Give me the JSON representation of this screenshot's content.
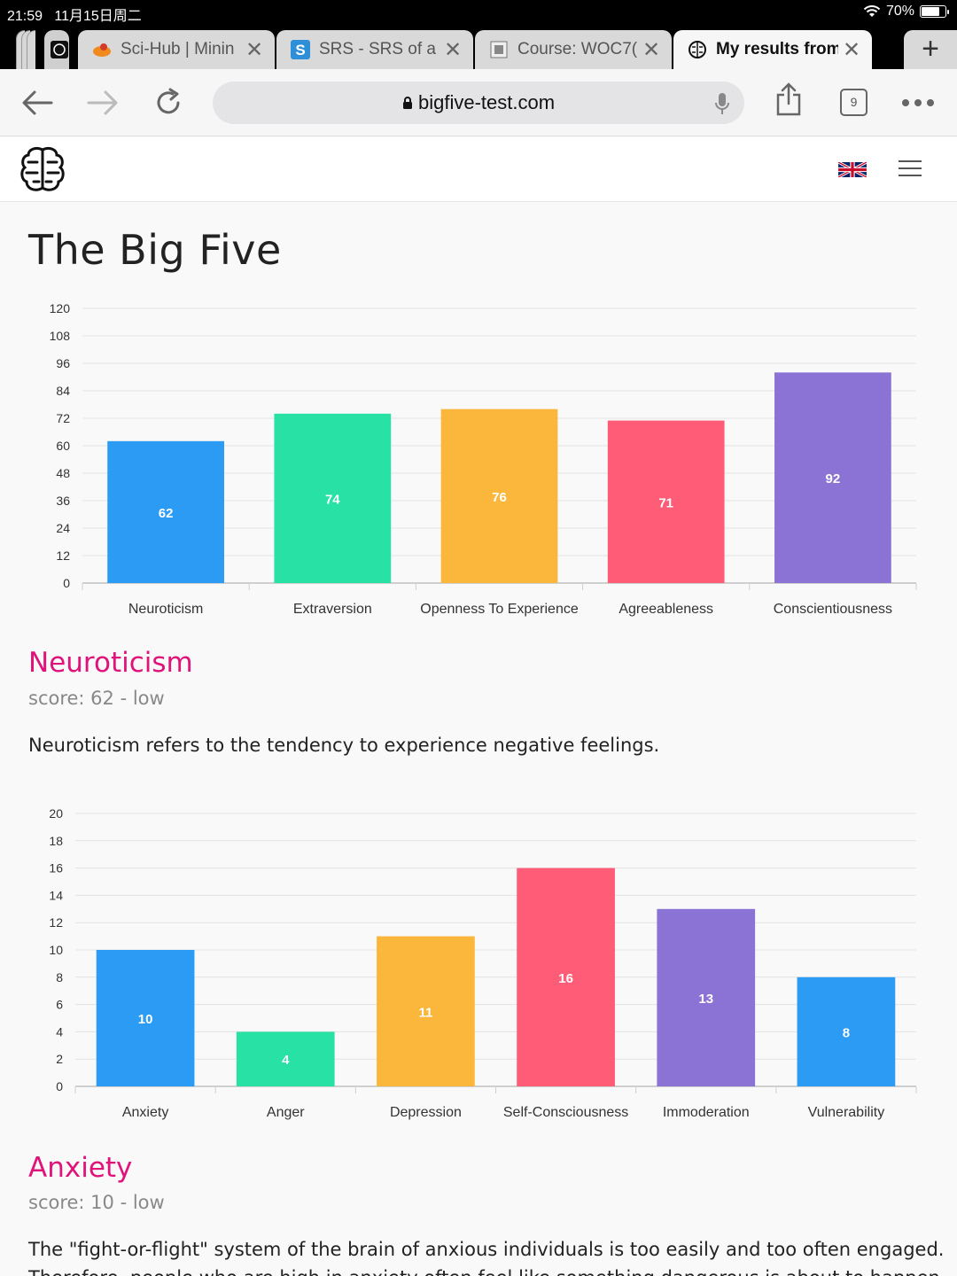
{
  "status_bar": {
    "time": "21:59",
    "date": "11月15日周二",
    "battery": "70%",
    "battery_level": 0.7
  },
  "tabs": [
    {
      "title": "Sci-Hub | Minin",
      "icon": "sci-hub-icon"
    },
    {
      "title": "SRS - SRS of a",
      "icon": "srs-icon"
    },
    {
      "title": "Course: WOC7(",
      "icon": "course-icon"
    },
    {
      "title": "My results from",
      "icon": "brain-icon",
      "active": true
    }
  ],
  "address_bar": {
    "url": "bigfive-test.com",
    "tab_count": "9"
  },
  "page": {
    "title": "The Big Five"
  },
  "sections": [
    {
      "title": "Neuroticism",
      "score": "score: 62 - low",
      "description": "Neuroticism refers to the tendency to experience negative feelings."
    },
    {
      "title": "Anxiety",
      "score": "score: 10 - low",
      "description_lines": [
        "The \"fight-or-flight\" system of the brain of anxious individuals is too easily and too often engaged.",
        "Therefore, people who are high in anxiety often feel like something dangerous is about to happen."
      ]
    }
  ],
  "colors": {
    "accent": "#e0137b",
    "blue": "#2b9bf4",
    "green": "#27e2a4",
    "orange": "#fbb73c",
    "red": "#ff5c77",
    "purple": "#8b73d6"
  },
  "chart_data": [
    {
      "type": "bar",
      "categories": [
        "Neuroticism",
        "Extraversion",
        "Openness To Experience",
        "Agreeableness",
        "Conscientiousness"
      ],
      "values": [
        62,
        74,
        76,
        71,
        92
      ],
      "colors": [
        "#2b9bf4",
        "#27e2a4",
        "#fbb73c",
        "#ff5c77",
        "#8b73d6"
      ],
      "ylim": [
        0,
        120
      ],
      "yticks": [
        0,
        12,
        24,
        36,
        48,
        60,
        72,
        84,
        96,
        108,
        120
      ],
      "grid": true
    },
    {
      "type": "bar",
      "categories": [
        "Anxiety",
        "Anger",
        "Depression",
        "Self-Consciousness",
        "Immoderation",
        "Vulnerability"
      ],
      "values": [
        10,
        4,
        11,
        16,
        13,
        8
      ],
      "colors": [
        "#2b9bf4",
        "#27e2a4",
        "#fbb73c",
        "#ff5c77",
        "#8b73d6",
        "#2b9bf4"
      ],
      "ylim": [
        0,
        20
      ],
      "yticks": [
        0,
        2,
        4,
        6,
        8,
        10,
        12,
        14,
        16,
        18,
        20
      ],
      "grid": true
    }
  ]
}
